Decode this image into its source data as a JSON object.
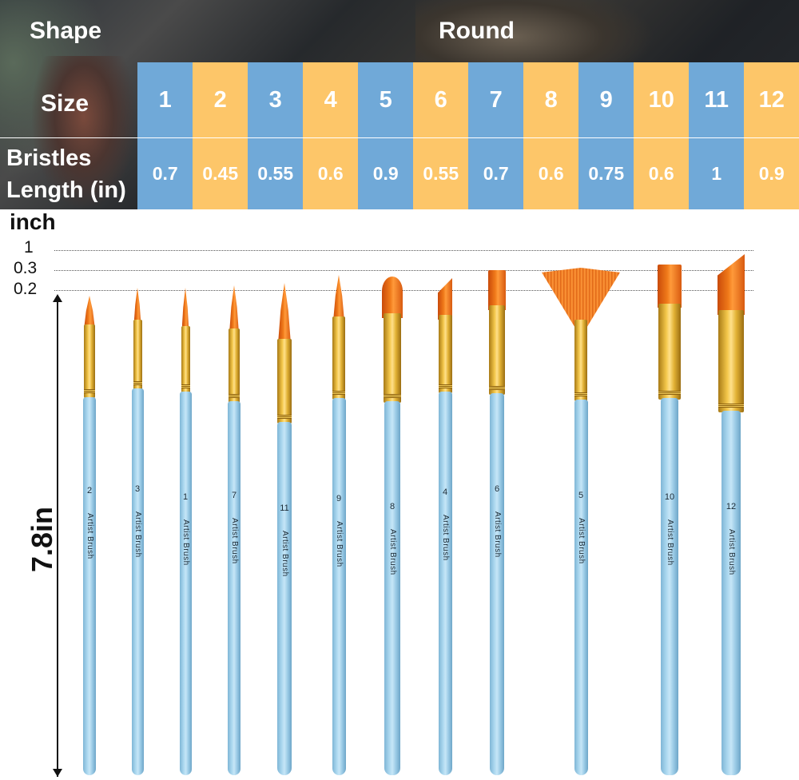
{
  "header": {
    "shape_label": "Shape",
    "shape_value": "Round",
    "size_label": "Size",
    "bristles_label_line1": "Bristles",
    "bristles_label_line2": "Length (in)"
  },
  "colors": {
    "blue": "#70a9d8",
    "yellow": "#fdc669",
    "text": "#ffffff"
  },
  "columns": [
    {
      "size": "1",
      "length": "0.7",
      "color": "blue"
    },
    {
      "size": "2",
      "length": "0.45",
      "color": "yellow"
    },
    {
      "size": "3",
      "length": "0.55",
      "color": "blue"
    },
    {
      "size": "4",
      "length": "0.6",
      "color": "yellow"
    },
    {
      "size": "5",
      "length": "0.9",
      "color": "blue"
    },
    {
      "size": "6",
      "length": "0.55",
      "color": "yellow"
    },
    {
      "size": "7",
      "length": "0.7",
      "color": "blue"
    },
    {
      "size": "8",
      "length": "0.6",
      "color": "yellow"
    },
    {
      "size": "9",
      "length": "0.75",
      "color": "blue"
    },
    {
      "size": "10",
      "length": "0.6",
      "color": "yellow"
    },
    {
      "size": "11",
      "length": "1",
      "color": "blue"
    },
    {
      "size": "12",
      "length": "0.9",
      "color": "yellow"
    }
  ],
  "ruler": {
    "unit": "inch",
    "ticks": [
      "1",
      "0.3",
      "0.2"
    ],
    "total_length": "7.8in"
  },
  "brushes": [
    {
      "number": "2",
      "brand": "Artist Brush",
      "tip": "round"
    },
    {
      "number": "3",
      "brand": "Artist Brush",
      "tip": "round"
    },
    {
      "number": "1",
      "brand": "Artist Brush",
      "tip": "round"
    },
    {
      "number": "7",
      "brand": "Artist Brush",
      "tip": "round"
    },
    {
      "number": "11",
      "brand": "Artist Brush",
      "tip": "round"
    },
    {
      "number": "9",
      "brand": "Artist Brush",
      "tip": "round"
    },
    {
      "number": "8",
      "brand": "Artist Brush",
      "tip": "filbert"
    },
    {
      "number": "4",
      "brand": "Artist Brush",
      "tip": "angular"
    },
    {
      "number": "6",
      "brand": "Artist Brush",
      "tip": "flat"
    },
    {
      "number": "5",
      "brand": "Artist Brush",
      "tip": "fan"
    },
    {
      "number": "10",
      "brand": "Artist Brush",
      "tip": "flat"
    },
    {
      "number": "12",
      "brand": "Artist Brush",
      "tip": "angular"
    }
  ]
}
